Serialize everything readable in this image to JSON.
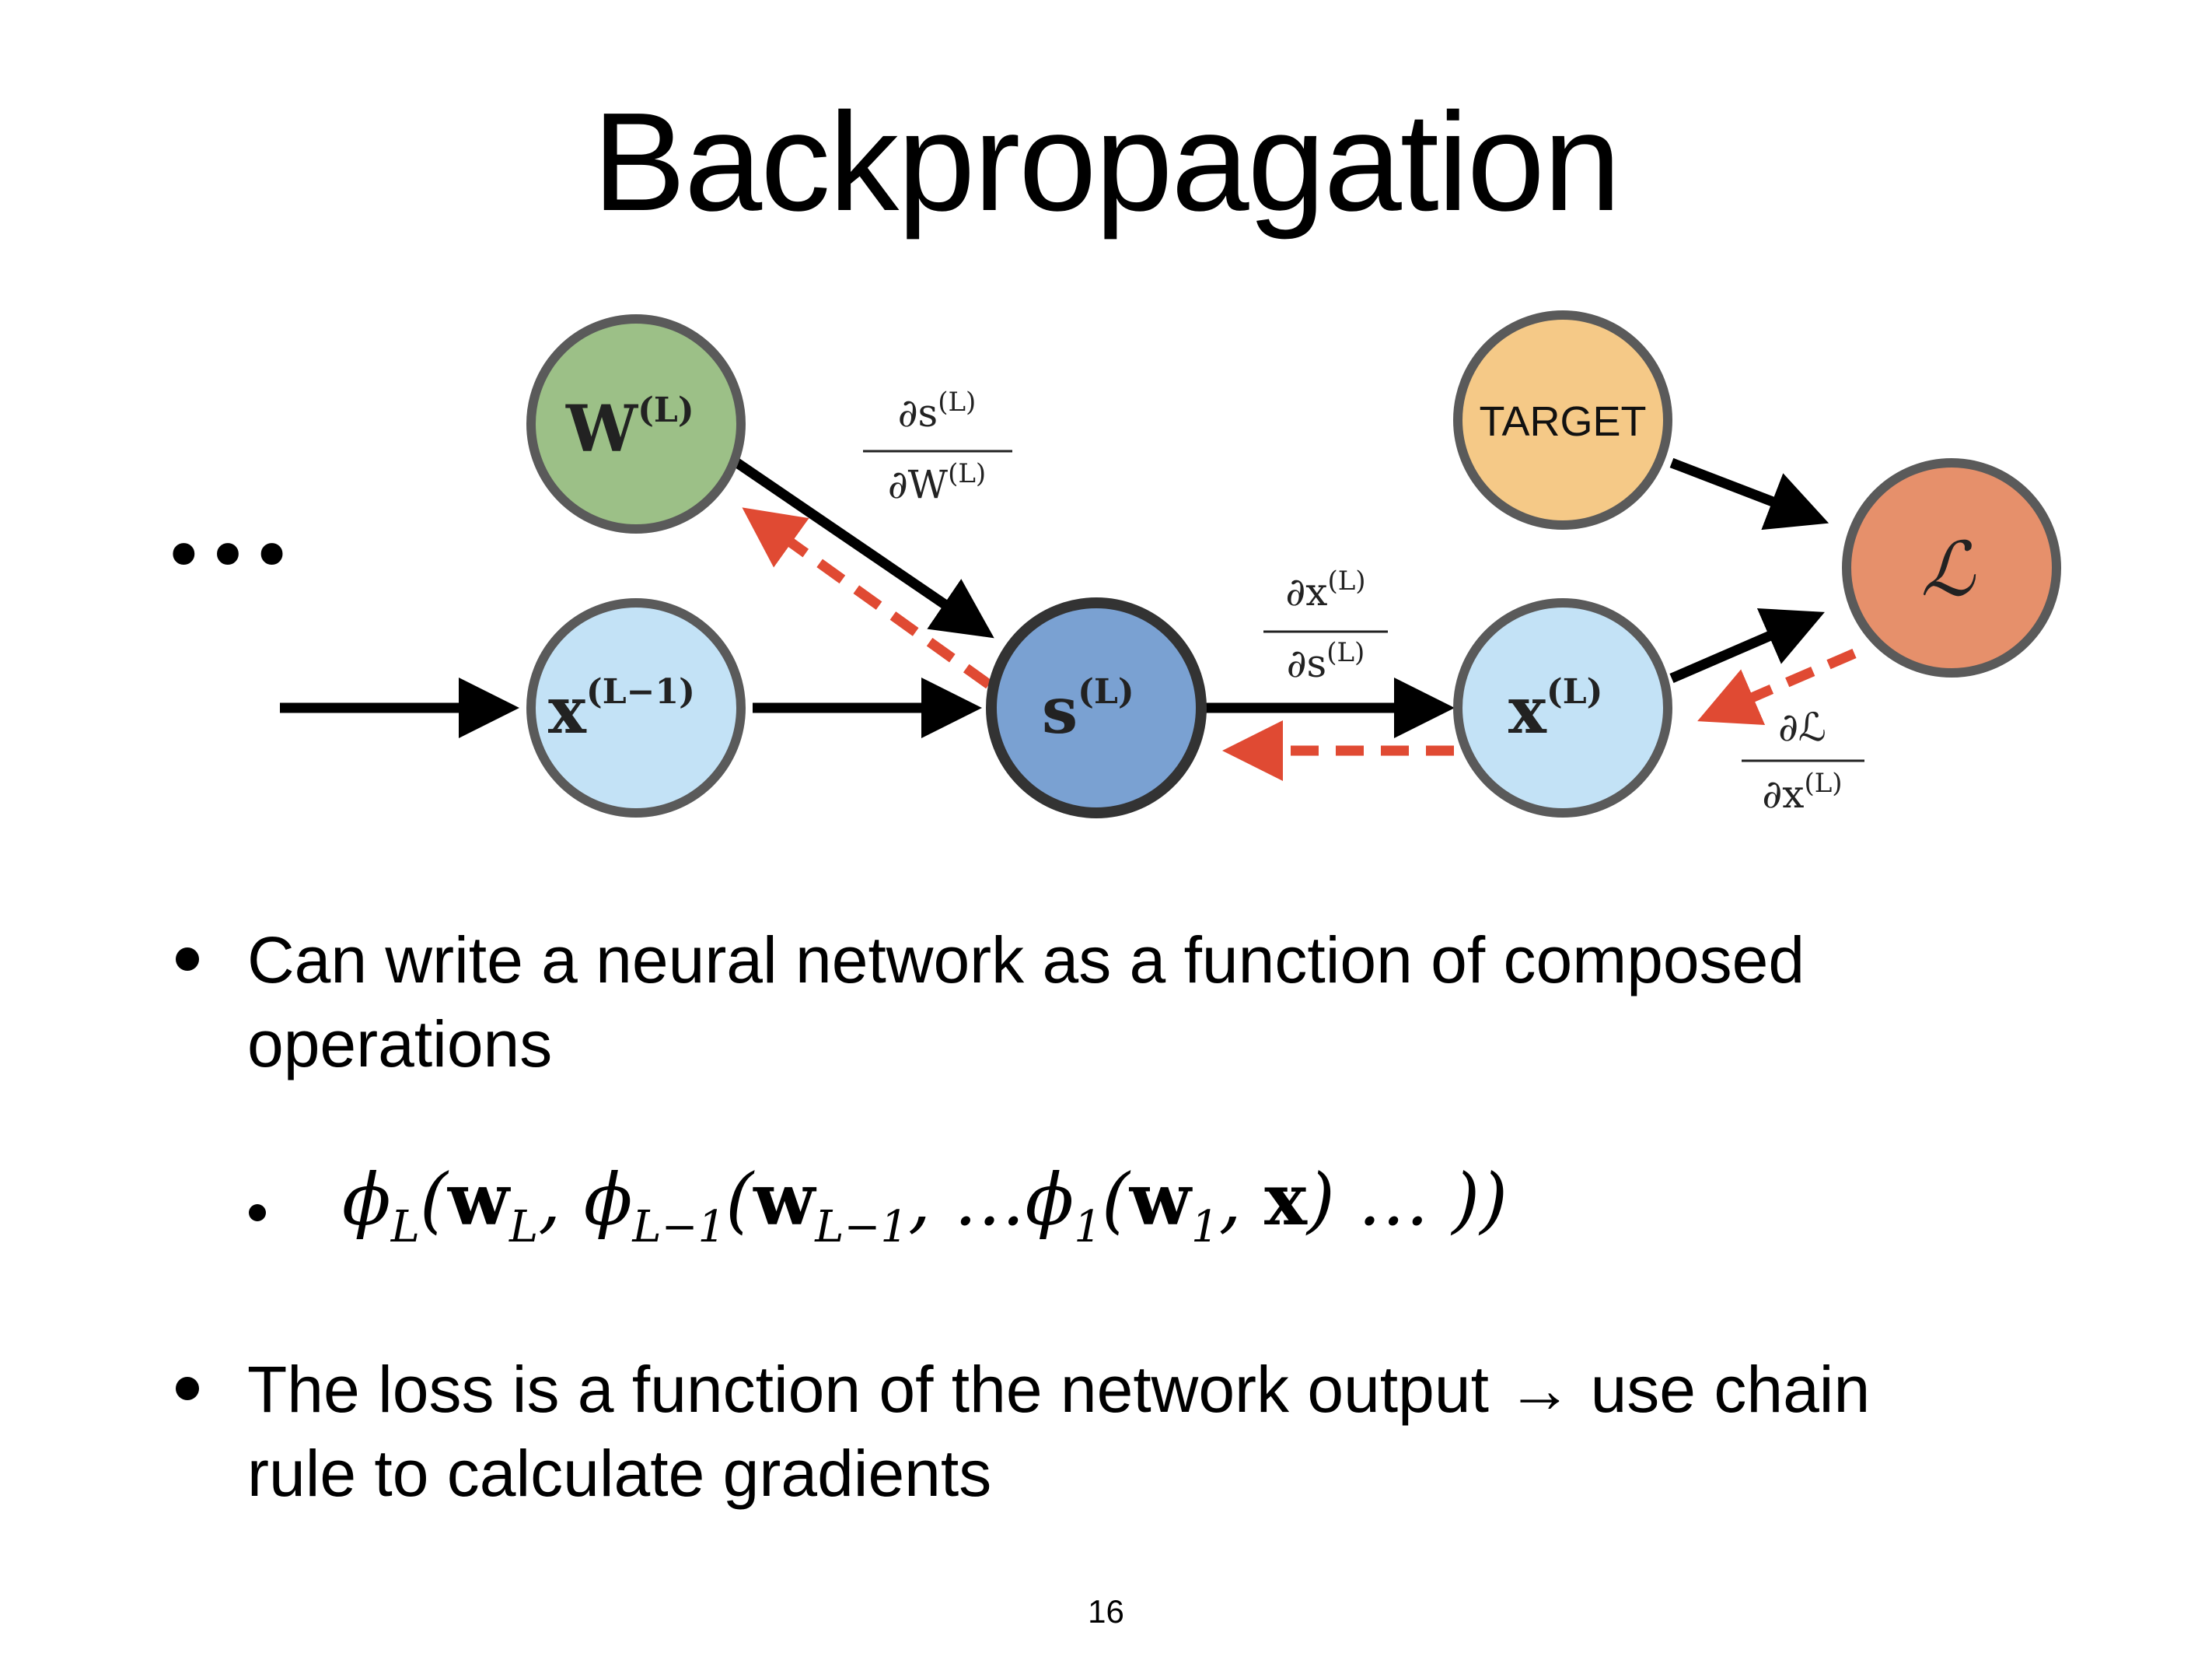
{
  "slide": {
    "title": "Backpropagation",
    "page_number": "16"
  },
  "diagram": {
    "ellipsis": "•••",
    "nodes": {
      "w": {
        "base": "W",
        "sup": "(L)",
        "color": "#9cc087"
      },
      "x_prev": {
        "base": "x",
        "sup": "(L−1)",
        "color": "#c3e2f6"
      },
      "s": {
        "base": "s",
        "sup": "(L)",
        "color": "#7aa1d2"
      },
      "x": {
        "base": "x",
        "sup": "(L)",
        "color": "#c3e2f6"
      },
      "target": {
        "label": "TARGET",
        "color": "#f5c987"
      },
      "loss": {
        "label": "ℒ",
        "color": "#e6906b"
      }
    },
    "derivatives": {
      "ds_dW": {
        "num_base": "∂s",
        "num_sup": "(L)",
        "den_base": "∂W",
        "den_sup": "(L)"
      },
      "dx_ds": {
        "num_base": "∂x",
        "num_sup": "(L)",
        "den_base": "∂s",
        "den_sup": "(L)"
      },
      "dL_dx": {
        "num_base": "∂ℒ",
        "num_sup": "",
        "den_base": "∂x",
        "den_sup": "(L)"
      }
    },
    "colors": {
      "forward_arrow": "#000000",
      "backward_arrow": "#e04a33",
      "node_border": "#5a5a5a",
      "s_border": "#333333"
    }
  },
  "bullets": [
    {
      "line1": "Can write a neural network as a function of composed",
      "line2": "operations"
    },
    {
      "line1": "The loss is a function of the network output → use chain",
      "line2": "rule to calculate gradients"
    }
  ],
  "formula": {
    "phi": "ϕ",
    "w": "w",
    "x": "x",
    "sub_L": "L",
    "sub_Lm1": "L−1",
    "sub_1": "1",
    "open": "(",
    "comma": ", ",
    "ellipsis": "…",
    "close_inner": ")",
    "close_all": " … ))"
  }
}
